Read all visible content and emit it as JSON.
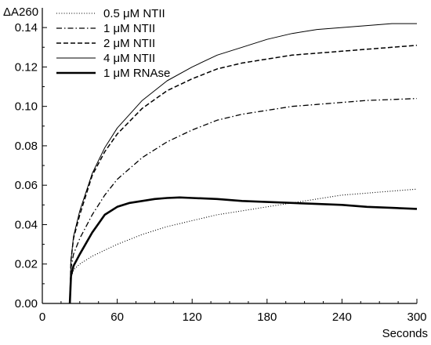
{
  "chart_data": {
    "type": "line",
    "title": "",
    "ylabel": "ΔA260",
    "xlabel": "Seconds",
    "xlim": [
      0,
      300
    ],
    "ylim": [
      0,
      0.15
    ],
    "grid": false,
    "legend_position": "top-left",
    "x_ticks": [
      0,
      60,
      120,
      180,
      240,
      300
    ],
    "x_tick_labels": [
      "0",
      "60",
      "120",
      "180",
      "240",
      "300"
    ],
    "y_ticks": [
      0.0,
      0.02,
      0.04,
      0.06,
      0.08,
      0.1,
      0.12,
      0.14
    ],
    "y_tick_labels": [
      "0.00",
      "0.02",
      "0.04",
      "0.06",
      "0.08",
      "0.10",
      "0.12",
      "0.14"
    ],
    "series": [
      {
        "name": "0.5 μM NTII",
        "style": "dotted",
        "x": [
          22,
          23,
          25,
          30,
          40,
          50,
          60,
          80,
          100,
          120,
          140,
          160,
          180,
          200,
          220,
          240,
          260,
          280,
          300
        ],
        "y": [
          0.0,
          0.013,
          0.017,
          0.02,
          0.024,
          0.027,
          0.03,
          0.035,
          0.039,
          0.042,
          0.045,
          0.047,
          0.049,
          0.051,
          0.053,
          0.055,
          0.056,
          0.057,
          0.058
        ]
      },
      {
        "name": "1 μM NTII",
        "style": "dashdot",
        "x": [
          22,
          23,
          25,
          30,
          40,
          50,
          60,
          80,
          100,
          120,
          140,
          160,
          180,
          200,
          220,
          240,
          260,
          280,
          300
        ],
        "y": [
          0.0,
          0.018,
          0.025,
          0.033,
          0.045,
          0.055,
          0.063,
          0.074,
          0.082,
          0.088,
          0.093,
          0.096,
          0.098,
          0.1,
          0.101,
          0.102,
          0.103,
          0.1035,
          0.104
        ]
      },
      {
        "name": "2 μM NTII",
        "style": "dashed",
        "x": [
          22,
          23,
          25,
          30,
          40,
          50,
          60,
          80,
          100,
          120,
          140,
          160,
          180,
          200,
          220,
          240,
          260,
          280,
          300
        ],
        "y": [
          0.0,
          0.022,
          0.033,
          0.045,
          0.065,
          0.077,
          0.086,
          0.099,
          0.108,
          0.114,
          0.119,
          0.122,
          0.124,
          0.126,
          0.127,
          0.128,
          0.129,
          0.13,
          0.131
        ]
      },
      {
        "name": "4 μM NTII",
        "style": "solid-thin",
        "x": [
          22,
          23,
          25,
          30,
          40,
          50,
          60,
          80,
          100,
          120,
          140,
          160,
          180,
          200,
          220,
          240,
          260,
          280,
          300
        ],
        "y": [
          0.0,
          0.022,
          0.034,
          0.047,
          0.066,
          0.079,
          0.089,
          0.103,
          0.113,
          0.12,
          0.126,
          0.13,
          0.134,
          0.137,
          0.139,
          0.14,
          0.141,
          0.142,
          0.142
        ]
      },
      {
        "name": "1 μM RNAse",
        "style": "solid-thick",
        "x": [
          22,
          23,
          25,
          30,
          40,
          50,
          60,
          70,
          80,
          90,
          100,
          110,
          120,
          140,
          160,
          180,
          200,
          220,
          240,
          260,
          280,
          300
        ],
        "y": [
          0.0,
          0.014,
          0.019,
          0.025,
          0.036,
          0.045,
          0.049,
          0.051,
          0.052,
          0.053,
          0.0535,
          0.0538,
          0.0535,
          0.053,
          0.052,
          0.0515,
          0.051,
          0.0505,
          0.05,
          0.049,
          0.0485,
          0.048
        ]
      }
    ]
  }
}
